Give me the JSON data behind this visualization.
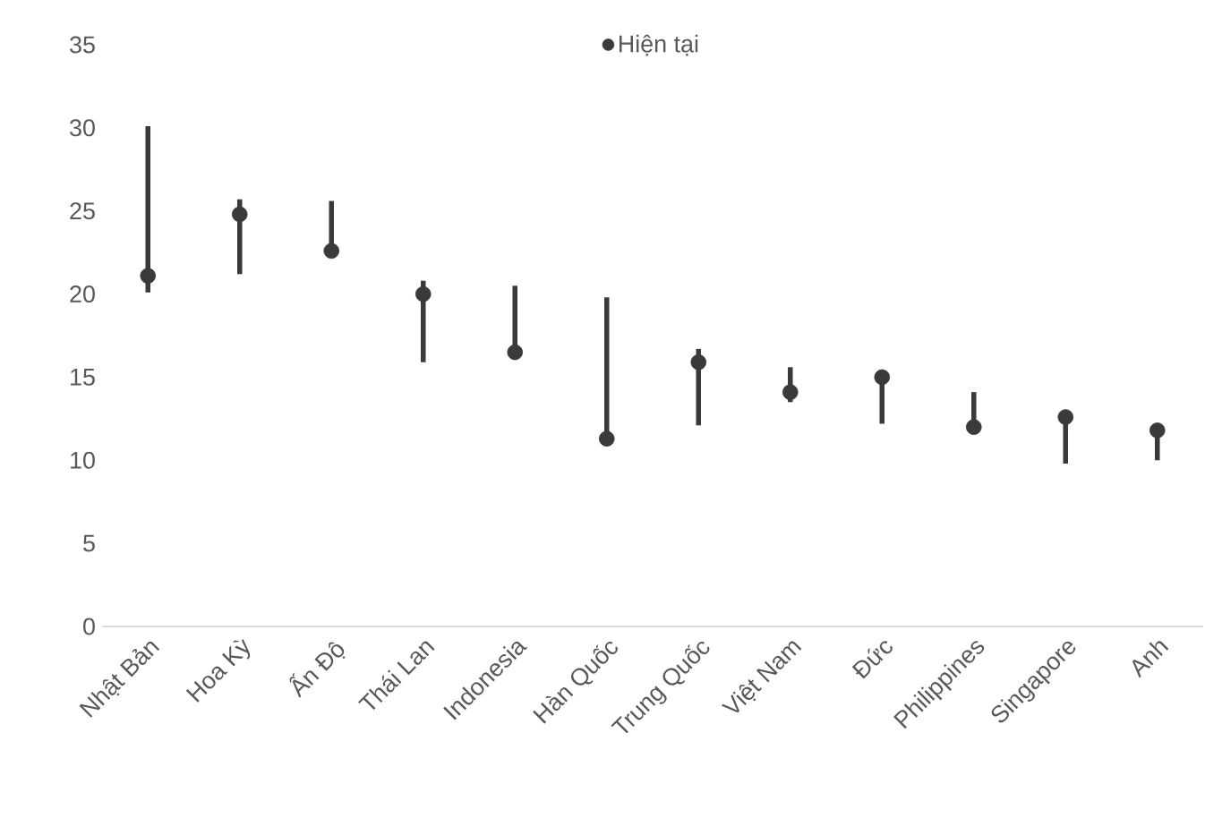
{
  "chart_data": {
    "type": "bar",
    "categories": [
      "Nhật Bản",
      "Hoa Kỳ",
      "Ấn Độ",
      "Thái Lan",
      "Indonesia",
      "Hàn Quốc",
      "Trung Quốc",
      "Việt Nam",
      "Đức",
      "Philippines",
      "Singapore",
      "Anh"
    ],
    "series": [
      {
        "color": "#3a3a3a",
        "base": [
          20.1,
          21.2,
          22.6,
          15.9,
          16.5,
          11.3,
          12.1,
          13.5,
          12.2,
          12.0,
          9.8,
          10.0
        ],
        "values": [
          10.0,
          4.5,
          3.0,
          4.9,
          4.0,
          8.5,
          4.6,
          2.1,
          2.8,
          2.1,
          2.8,
          1.8
        ]
      },
      {
        "type": "scatter",
        "name": "Hiện tại",
        "color": "#3a3a3a",
        "marker": "circle",
        "values": [
          21.1,
          24.8,
          22.6,
          20.0,
          16.5,
          11.3,
          15.9,
          14.1,
          15.0,
          12.0,
          12.6,
          11.8
        ]
      }
    ],
    "ylim": [
      0,
      35
    ],
    "yticks": [
      0,
      5,
      10,
      15,
      20,
      25,
      30,
      35
    ],
    "legend": "top"
  }
}
